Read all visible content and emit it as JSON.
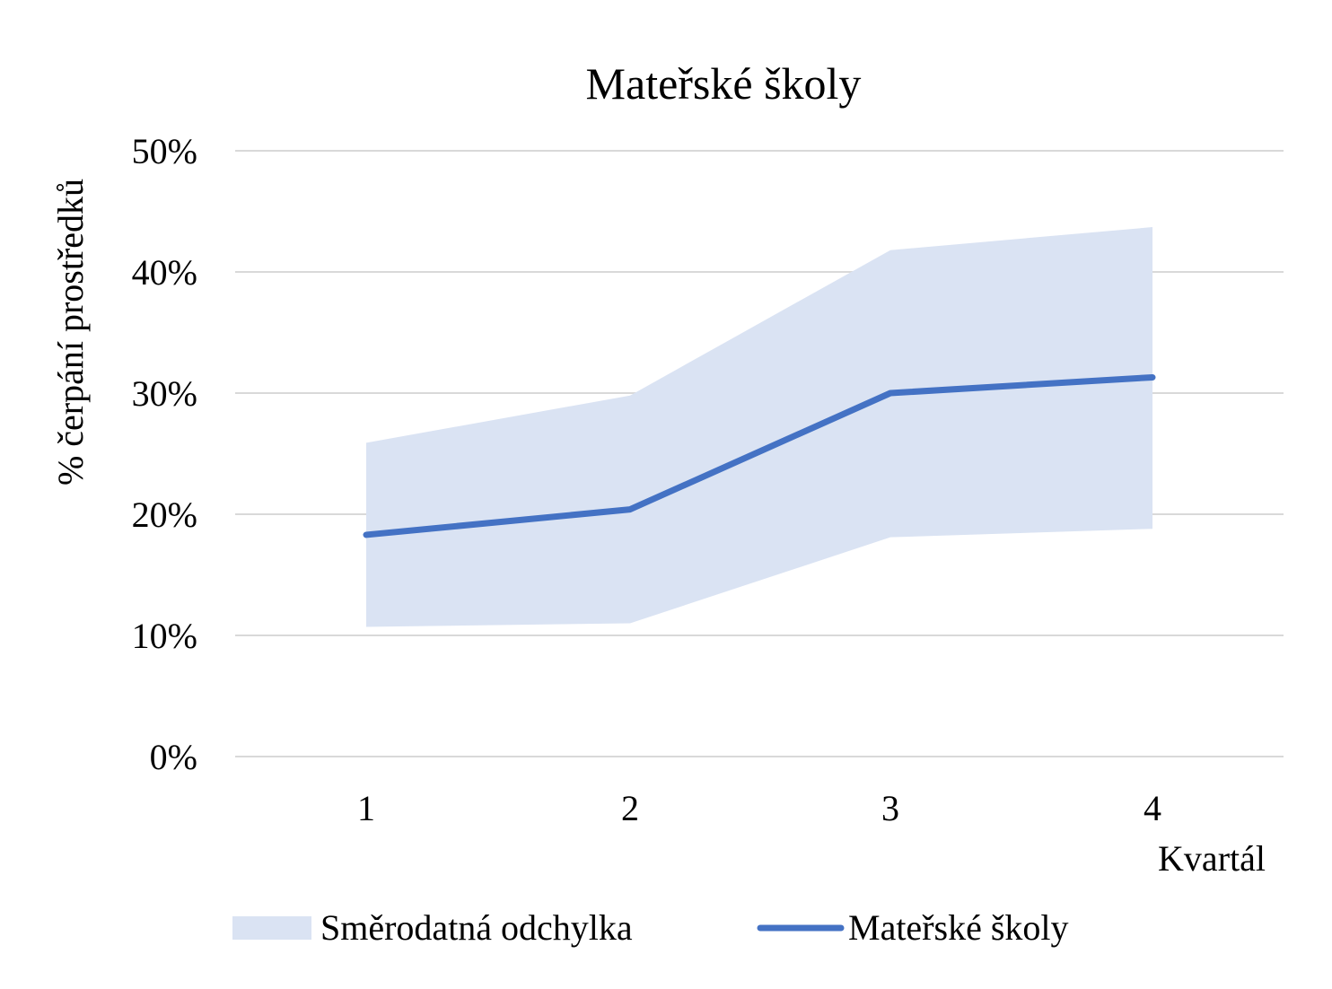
{
  "chart_data": {
    "type": "area",
    "title": "Mateřské školy",
    "xlabel": "Kvartál",
    "ylabel": "% čerpání prostředků",
    "categories": [
      "1",
      "2",
      "3",
      "4"
    ],
    "ylim": [
      0,
      0.5
    ],
    "yticks": [
      {
        "value": 0,
        "label": "0%"
      },
      {
        "value": 0.1,
        "label": "10%"
      },
      {
        "value": 0.2,
        "label": "20%"
      },
      {
        "value": 0.3,
        "label": "30%"
      },
      {
        "value": 0.4,
        "label": "40%"
      },
      {
        "value": 0.5,
        "label": "50%"
      }
    ],
    "grid": true,
    "legend_position": "bottom",
    "series": [
      {
        "name": "Směrodatná odchylka",
        "kind": "band",
        "lower": [
          0.107,
          0.11,
          0.181,
          0.188
        ],
        "upper": [
          0.259,
          0.298,
          0.418,
          0.437
        ],
        "color": "#dae3f3"
      },
      {
        "name": "Mateřské školy",
        "kind": "line",
        "values": [
          0.183,
          0.204,
          0.3,
          0.313
        ],
        "color": "#4472c4"
      }
    ]
  }
}
